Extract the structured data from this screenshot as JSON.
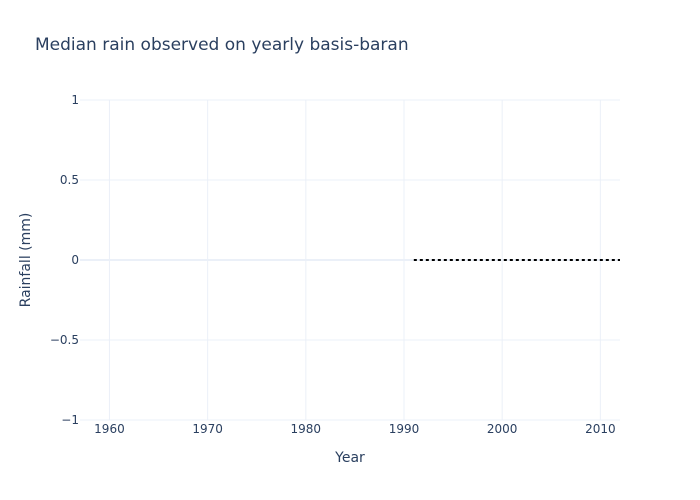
{
  "chart_data": {
    "type": "line",
    "title": "Median rain observed on yearly basis-baran",
    "xlabel": "Year",
    "ylabel": "Rainfall (mm)",
    "xlim": [
      1957,
      2012
    ],
    "ylim": [
      -1,
      1
    ],
    "x_ticks": [
      1960,
      1970,
      1980,
      1990,
      2000,
      2010
    ],
    "y_ticks": [
      1,
      0.5,
      0,
      -0.5,
      -1
    ],
    "y_tick_labels": [
      "1",
      "0.5",
      "0",
      "−0.5",
      "−1"
    ],
    "grid": true,
    "series": [
      {
        "x": [
          1991,
          2012
        ],
        "values": [
          0,
          0
        ],
        "line_style": "dotted",
        "color": "#000000"
      }
    ]
  }
}
